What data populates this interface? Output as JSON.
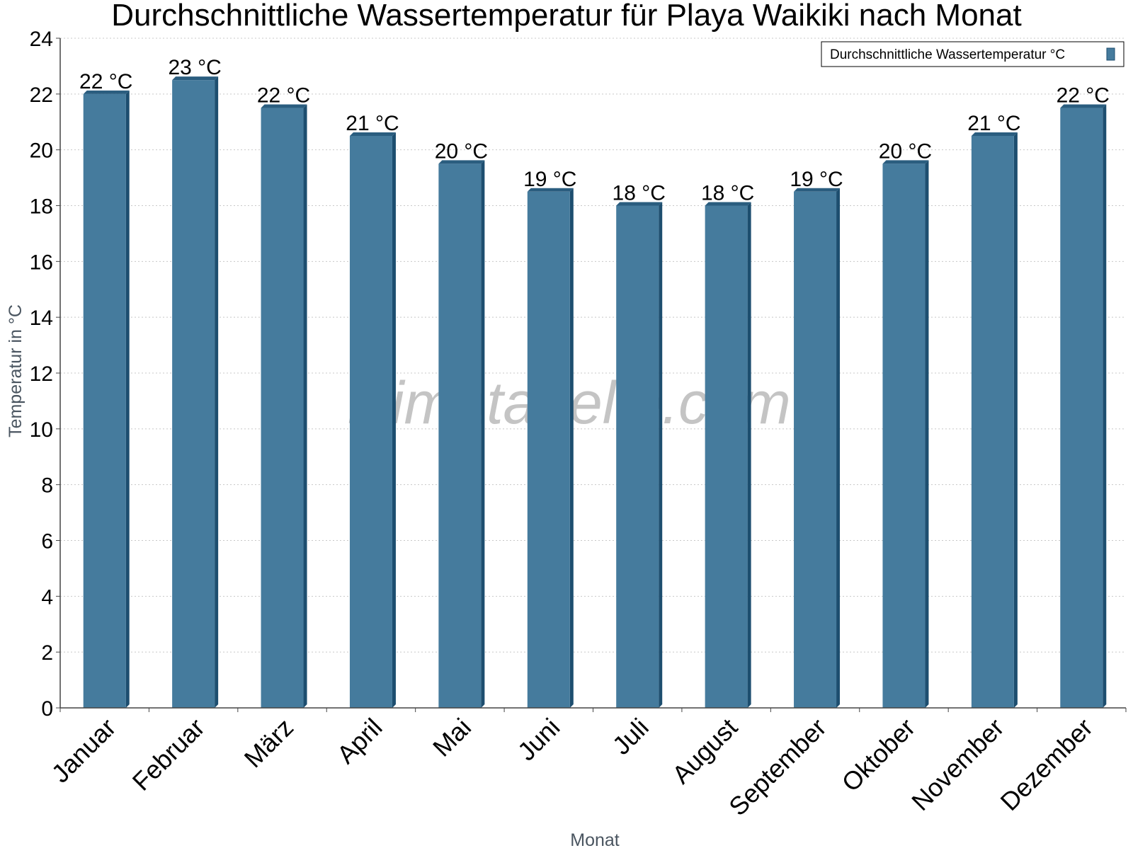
{
  "chart_data": {
    "type": "bar",
    "title": "Durchschnittliche Wassertemperatur für Playa Waikiki nach Monat",
    "xlabel": "Monat",
    "ylabel": "Temperatur in °C",
    "ylim": [
      0,
      24
    ],
    "yticks": [
      0,
      2,
      4,
      6,
      8,
      10,
      12,
      14,
      16,
      18,
      20,
      22,
      24
    ],
    "categories": [
      "Januar",
      "Februar",
      "März",
      "April",
      "Mai",
      "Juni",
      "Juli",
      "August",
      "September",
      "Oktober",
      "November",
      "Dezember"
    ],
    "series": [
      {
        "name": "Durchschnittliche Wassertemperatur °C",
        "values": [
          22,
          22.5,
          21.5,
          20.5,
          19.5,
          18.5,
          18,
          18,
          18.5,
          19.5,
          20.5,
          21.5
        ],
        "labels": [
          "22 °C",
          "23 °C",
          "22 °C",
          "21 °C",
          "20 °C",
          "19 °C",
          "18 °C",
          "18 °C",
          "19 °C",
          "20 °C",
          "21 °C",
          "22 °C"
        ]
      }
    ],
    "grid": true,
    "legend_position": "top-right",
    "watermark": "klimatabelle.com",
    "colors": {
      "bar_front": "#457b9d",
      "bar_side": "#1d4e6f",
      "bar_top": "#2a5d7f",
      "grid": "#c8c8c8",
      "axis": "#444444",
      "axis_label": "#4a5560",
      "watermark": "#c4c4c4"
    }
  }
}
